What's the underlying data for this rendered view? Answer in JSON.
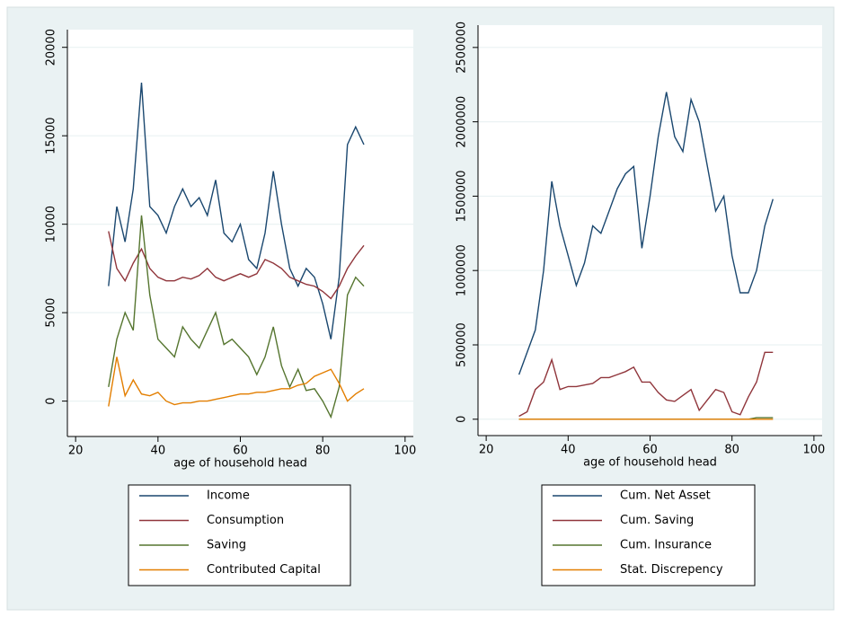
{
  "chart_data": [
    {
      "type": "line",
      "xlabel": "age of household head",
      "x": [
        28,
        30,
        32,
        34,
        36,
        38,
        40,
        42,
        44,
        46,
        48,
        50,
        52,
        54,
        56,
        58,
        60,
        62,
        64,
        66,
        68,
        70,
        72,
        74,
        76,
        78,
        80,
        82,
        84,
        86,
        88,
        90
      ],
      "xlim": [
        18,
        102
      ],
      "xticks": [
        20,
        40,
        60,
        80,
        100
      ],
      "ylim": [
        -2000,
        21000
      ],
      "yticks": [
        0,
        5000,
        10000,
        15000,
        20000
      ],
      "grid": true,
      "series": [
        {
          "name": "Income",
          "color": "#1a476f",
          "values": [
            6500,
            11000,
            9000,
            12000,
            18000,
            11000,
            10500,
            9500,
            11000,
            12000,
            11000,
            11500,
            10500,
            12500,
            9500,
            9000,
            10000,
            8000,
            7500,
            9500,
            13000,
            10000,
            7500,
            6500,
            7500,
            7000,
            5500,
            3500,
            7000,
            14500,
            15500,
            14500
          ]
        },
        {
          "name": "Consumption",
          "color": "#90353b",
          "values": [
            9600,
            7500,
            6800,
            7800,
            8600,
            7500,
            7000,
            6800,
            6800,
            7000,
            6900,
            7100,
            7500,
            7000,
            6800,
            7000,
            7200,
            7000,
            7200,
            8000,
            7800,
            7500,
            7000,
            6800,
            6600,
            6500,
            6200,
            5800,
            6500,
            7500,
            8200,
            8800
          ]
        },
        {
          "name": "Saving",
          "color": "#55752f",
          "values": [
            800,
            3500,
            5000,
            4000,
            10500,
            6000,
            3500,
            3000,
            2500,
            4200,
            3500,
            3000,
            4000,
            5000,
            3200,
            3500,
            3000,
            2500,
            1500,
            2500,
            4200,
            2000,
            800,
            1800,
            600,
            700,
            0,
            -900,
            800,
            6000,
            7000,
            6500
          ]
        },
        {
          "name": "Contributed Capital",
          "color": "#e37e00",
          "values": [
            -300,
            2500,
            300,
            1200,
            400,
            300,
            500,
            0,
            -200,
            -100,
            -100,
            0,
            0,
            100,
            200,
            300,
            400,
            400,
            500,
            500,
            600,
            700,
            700,
            900,
            1000,
            1400,
            1600,
            1800,
            1000,
            0,
            400,
            700
          ]
        }
      ]
    },
    {
      "type": "line",
      "xlabel": "age of household head",
      "x": [
        28,
        30,
        32,
        34,
        36,
        38,
        40,
        42,
        44,
        46,
        48,
        50,
        52,
        54,
        56,
        58,
        60,
        62,
        64,
        66,
        68,
        70,
        72,
        74,
        76,
        78,
        80,
        82,
        84,
        86,
        88,
        90
      ],
      "xlim": [
        18,
        102
      ],
      "xticks": [
        20,
        40,
        60,
        80,
        100
      ],
      "ylim": [
        -110000,
        2650000
      ],
      "yticks": [
        0,
        500000,
        1000000,
        1500000,
        2000000,
        2500000
      ],
      "grid": true,
      "series": [
        {
          "name": "Cum. Net Asset",
          "color": "#1a476f",
          "values": [
            300000,
            450000,
            600000,
            1000000,
            1600000,
            1300000,
            1100000,
            900000,
            1050000,
            1300000,
            1250000,
            1400000,
            1550000,
            1650000,
            1700000,
            1150000,
            1500000,
            1900000,
            2200000,
            1900000,
            1800000,
            2150000,
            2000000,
            1700000,
            1400000,
            1500000,
            1100000,
            850000,
            850000,
            1000000,
            1300000,
            1480000
          ]
        },
        {
          "name": "Cum. Saving",
          "color": "#90353b",
          "values": [
            20000,
            50000,
            200000,
            250000,
            400000,
            200000,
            220000,
            220000,
            230000,
            240000,
            280000,
            280000,
            300000,
            320000,
            350000,
            250000,
            250000,
            180000,
            130000,
            120000,
            160000,
            200000,
            60000,
            130000,
            200000,
            180000,
            50000,
            30000,
            150000,
            250000,
            450000,
            450000
          ]
        },
        {
          "name": "Cum. Insurance",
          "color": "#55752f",
          "values": [
            0,
            0,
            0,
            0,
            0,
            0,
            0,
            0,
            0,
            0,
            0,
            0,
            0,
            0,
            0,
            0,
            0,
            0,
            0,
            0,
            0,
            0,
            0,
            0,
            0,
            0,
            0,
            0,
            0,
            10000,
            10000,
            10000
          ]
        },
        {
          "name": "Stat. Discrepency",
          "color": "#e37e00",
          "values": [
            0,
            0,
            0,
            0,
            0,
            0,
            0,
            0,
            0,
            0,
            0,
            0,
            0,
            0,
            0,
            0,
            0,
            0,
            0,
            0,
            0,
            0,
            0,
            0,
            0,
            0,
            0,
            0,
            0,
            0,
            0,
            0
          ]
        }
      ]
    }
  ]
}
